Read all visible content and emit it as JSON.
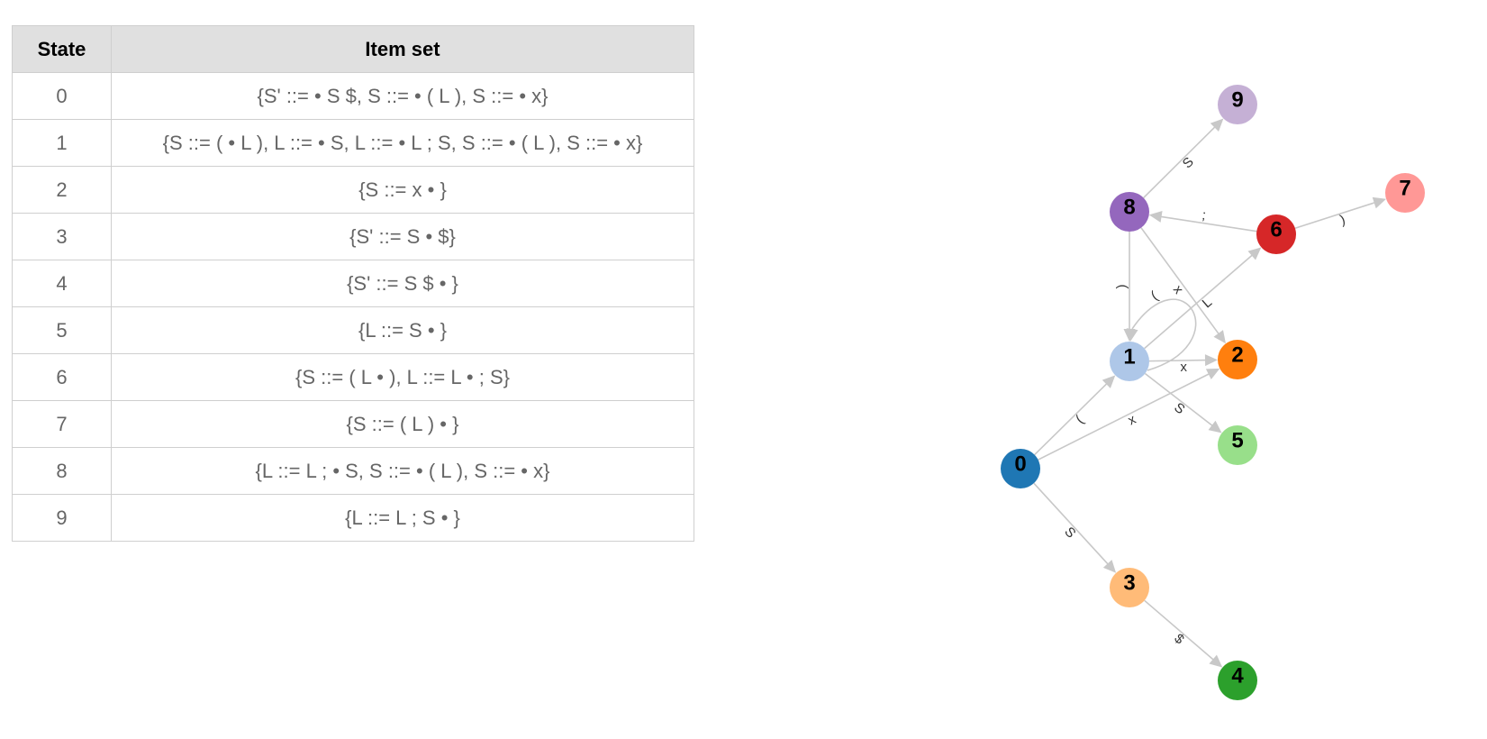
{
  "table": {
    "headers": {
      "state": "State",
      "items": "Item set"
    },
    "rows": [
      {
        "state": "0",
        "items": "{S' ::= • S $, S ::= • ( L ), S ::= • x}"
      },
      {
        "state": "1",
        "items": "{S ::= ( • L ), L ::= • S, L ::= • L ; S, S ::= • ( L ), S ::= • x}"
      },
      {
        "state": "2",
        "items": "{S ::= x • }"
      },
      {
        "state": "3",
        "items": "{S' ::= S • $}"
      },
      {
        "state": "4",
        "items": "{S' ::= S $ • }"
      },
      {
        "state": "5",
        "items": "{L ::= S • }"
      },
      {
        "state": "6",
        "items": "{S ::= ( L • ), L ::= L • ; S}"
      },
      {
        "state": "7",
        "items": "{S ::= ( L ) • }"
      },
      {
        "state": "8",
        "items": "{L ::= L ; • S, S ::= • ( L ), S ::= • x}"
      },
      {
        "state": "9",
        "items": "{L ::= L ; S • }"
      }
    ]
  },
  "graph": {
    "nodes": [
      {
        "id": "0",
        "label": "0",
        "color": "#1f77b4"
      },
      {
        "id": "1",
        "label": "1",
        "color": "#aec7e8"
      },
      {
        "id": "2",
        "label": "2",
        "color": "#ff7f0e"
      },
      {
        "id": "3",
        "label": "3",
        "color": "#ffbb78"
      },
      {
        "id": "4",
        "label": "4",
        "color": "#2ca02c"
      },
      {
        "id": "5",
        "label": "5",
        "color": "#98df8a"
      },
      {
        "id": "6",
        "label": "6",
        "color": "#d62728"
      },
      {
        "id": "7",
        "label": "7",
        "color": "#ff9896"
      },
      {
        "id": "8",
        "label": "8",
        "color": "#9467bd"
      },
      {
        "id": "9",
        "label": "9",
        "color": "#c5b0d5"
      }
    ],
    "edges": [
      {
        "from": "0",
        "to": "1",
        "label": "("
      },
      {
        "from": "0",
        "to": "2",
        "label": "x"
      },
      {
        "from": "0",
        "to": "3",
        "label": "S"
      },
      {
        "from": "3",
        "to": "4",
        "label": "$"
      },
      {
        "from": "1",
        "to": "1",
        "label": "("
      },
      {
        "from": "1",
        "to": "2",
        "label": "x"
      },
      {
        "from": "1",
        "to": "5",
        "label": "S"
      },
      {
        "from": "1",
        "to": "6",
        "label": "L"
      },
      {
        "from": "6",
        "to": "7",
        "label": ")"
      },
      {
        "from": "6",
        "to": "8",
        "label": ";"
      },
      {
        "from": "8",
        "to": "1",
        "label": "("
      },
      {
        "from": "8",
        "to": "2",
        "label": "x"
      },
      {
        "from": "8",
        "to": "9",
        "label": "S"
      }
    ]
  }
}
